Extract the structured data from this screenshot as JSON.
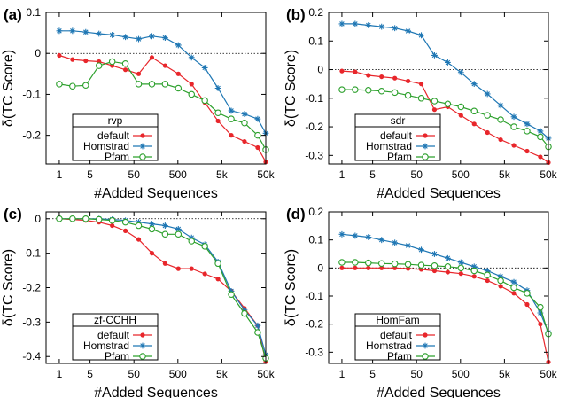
{
  "x_ticks": [
    "1",
    "5",
    "50",
    "500",
    "5k",
    "50k"
  ],
  "chart_data": [
    {
      "type": "line",
      "panel_label": "(a)",
      "xlabel": "#Added Sequences",
      "ylabel": "δ(TC Score)",
      "ylim": [
        -0.27,
        0.1
      ],
      "yticks": [
        0.1,
        0,
        -0.1,
        -0.2
      ],
      "ytick_labels": [
        "0.1",
        "0",
        "-0.1",
        "-0.2"
      ],
      "x": [
        1,
        2,
        4,
        8,
        16,
        32,
        64,
        128,
        256,
        512,
        1024,
        2048,
        4096,
        8192,
        16384,
        32768,
        50000
      ],
      "legend_title": "rvp",
      "series": [
        {
          "name": "default",
          "color": "#e8262b",
          "marker": "dot",
          "values": [
            -0.005,
            -0.015,
            -0.018,
            -0.02,
            -0.03,
            -0.04,
            -0.05,
            -0.01,
            -0.03,
            -0.05,
            -0.075,
            -0.12,
            -0.165,
            -0.2,
            -0.215,
            -0.23,
            -0.265
          ]
        },
        {
          "name": "Homstrad",
          "color": "#1f77b4",
          "marker": "star",
          "values": [
            0.055,
            0.055,
            0.052,
            0.048,
            0.045,
            0.04,
            0.035,
            0.042,
            0.038,
            0.02,
            -0.01,
            -0.035,
            -0.085,
            -0.14,
            -0.148,
            -0.16,
            -0.195
          ]
        },
        {
          "name": "Pfam",
          "color": "#2ca02c",
          "marker": "circle",
          "values": [
            -0.075,
            -0.08,
            -0.078,
            -0.03,
            -0.02,
            -0.025,
            -0.075,
            -0.075,
            -0.075,
            -0.085,
            -0.1,
            -0.115,
            -0.145,
            -0.16,
            -0.17,
            -0.2,
            -0.235
          ]
        }
      ]
    },
    {
      "type": "line",
      "panel_label": "(b)",
      "xlabel": "#Added Sequences",
      "ylabel": "δ(TC Score)",
      "ylim": [
        -0.33,
        0.2
      ],
      "yticks": [
        0.2,
        0.1,
        0,
        -0.1,
        -0.2,
        -0.3
      ],
      "ytick_labels": [
        "0.2",
        "0.1",
        "0",
        "-0.1",
        "-0.2",
        "-0.3"
      ],
      "x": [
        1,
        2,
        4,
        8,
        16,
        32,
        64,
        128,
        256,
        512,
        1024,
        2048,
        4096,
        8192,
        16384,
        32768,
        50000
      ],
      "legend_title": "sdr",
      "series": [
        {
          "name": "default",
          "color": "#e8262b",
          "marker": "dot",
          "values": [
            -0.005,
            -0.008,
            -0.02,
            -0.025,
            -0.03,
            -0.04,
            -0.05,
            -0.14,
            -0.13,
            -0.16,
            -0.19,
            -0.22,
            -0.245,
            -0.265,
            -0.285,
            -0.305,
            -0.325
          ]
        },
        {
          "name": "Homstrad",
          "color": "#1f77b4",
          "marker": "star",
          "values": [
            0.16,
            0.16,
            0.155,
            0.15,
            0.145,
            0.135,
            0.12,
            0.05,
            0.025,
            -0.01,
            -0.05,
            -0.085,
            -0.125,
            -0.165,
            -0.19,
            -0.215,
            -0.24
          ]
        },
        {
          "name": "Pfam",
          "color": "#2ca02c",
          "marker": "circle",
          "values": [
            -0.07,
            -0.07,
            -0.072,
            -0.075,
            -0.08,
            -0.09,
            -0.1,
            -0.11,
            -0.12,
            -0.13,
            -0.145,
            -0.16,
            -0.175,
            -0.2,
            -0.215,
            -0.235,
            -0.27
          ]
        }
      ]
    },
    {
      "type": "line",
      "panel_label": "(c)",
      "xlabel": "#Added Sequences",
      "ylabel": "δ(TC Score)",
      "ylim": [
        -0.42,
        0.02
      ],
      "yticks": [
        0,
        -0.1,
        -0.2,
        -0.3,
        -0.4
      ],
      "ytick_labels": [
        "0",
        "-0.1",
        "-0.2",
        "-0.3",
        "-0.4"
      ],
      "x": [
        1,
        2,
        4,
        8,
        16,
        32,
        64,
        128,
        256,
        512,
        1024,
        2048,
        4096,
        8192,
        16384,
        32768,
        50000
      ],
      "legend_title": "zf-CCHH",
      "series": [
        {
          "name": "default",
          "color": "#e8262b",
          "marker": "dot",
          "values": [
            0,
            -0.002,
            -0.005,
            -0.01,
            -0.02,
            -0.035,
            -0.06,
            -0.1,
            -0.13,
            -0.145,
            -0.145,
            -0.16,
            -0.175,
            -0.21,
            -0.26,
            -0.31,
            -0.415
          ]
        },
        {
          "name": "Homstrad",
          "color": "#1f77b4",
          "marker": "star",
          "values": [
            0,
            0,
            0,
            0,
            -0.002,
            -0.005,
            -0.01,
            -0.015,
            -0.02,
            -0.03,
            -0.055,
            -0.075,
            -0.125,
            -0.21,
            -0.265,
            -0.31,
            -0.395
          ]
        },
        {
          "name": "Pfam",
          "color": "#2ca02c",
          "marker": "circle",
          "values": [
            0,
            0,
            0,
            -0.002,
            -0.005,
            -0.01,
            -0.02,
            -0.03,
            -0.045,
            -0.045,
            -0.065,
            -0.08,
            -0.13,
            -0.22,
            -0.275,
            -0.33,
            -0.405
          ]
        }
      ]
    },
    {
      "type": "line",
      "panel_label": "(d)",
      "xlabel": "#Added Sequences",
      "ylabel": "δ(TC Score)",
      "ylim": [
        -0.34,
        0.2
      ],
      "yticks": [
        0.2,
        0.1,
        0,
        -0.1,
        -0.2,
        -0.3
      ],
      "ytick_labels": [
        "0.2",
        "0.1",
        "0",
        "-0.1",
        "-0.2",
        "-0.3"
      ],
      "x": [
        1,
        2,
        4,
        8,
        16,
        32,
        64,
        128,
        256,
        512,
        1024,
        2048,
        4096,
        8192,
        16384,
        32768,
        50000
      ],
      "legend_title": "HomFam",
      "series": [
        {
          "name": "default",
          "color": "#e8262b",
          "marker": "dot",
          "values": [
            0,
            0,
            0,
            0,
            0,
            -0.002,
            -0.005,
            -0.01,
            -0.015,
            -0.02,
            -0.03,
            -0.045,
            -0.065,
            -0.09,
            -0.13,
            -0.2,
            -0.335
          ]
        },
        {
          "name": "Homstrad",
          "color": "#1f77b4",
          "marker": "star",
          "values": [
            0.12,
            0.115,
            0.11,
            0.1,
            0.09,
            0.08,
            0.065,
            0.05,
            0.035,
            0.02,
            0.005,
            -0.01,
            -0.03,
            -0.05,
            -0.08,
            -0.16,
            -0.23
          ]
        },
        {
          "name": "Pfam",
          "color": "#2ca02c",
          "marker": "circle",
          "values": [
            0.02,
            0.02,
            0.018,
            0.016,
            0.015,
            0.013,
            0.01,
            0.008,
            0.005,
            0,
            -0.01,
            -0.025,
            -0.045,
            -0.07,
            -0.09,
            -0.14,
            -0.235
          ]
        }
      ]
    }
  ]
}
